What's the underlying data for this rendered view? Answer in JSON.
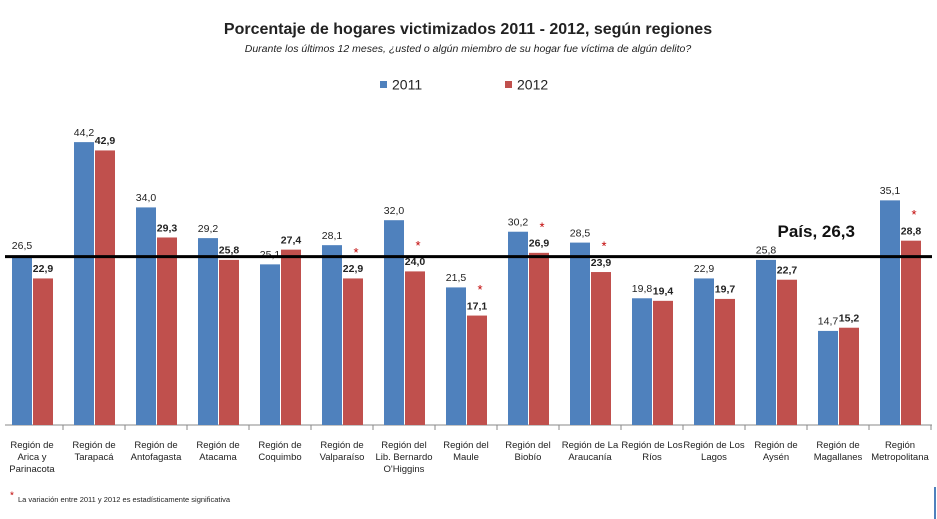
{
  "chart_data": {
    "type": "bar",
    "title": "Porcentaje de hogares victimizados 2011 - 2012, según regiones",
    "subtitle": "Durante los últimos 12 meses, ¿usted o algún miembro de su hogar fue víctima de algún delito?",
    "categories": [
      "Región de Arica y Parinacota",
      "Región de Tarapacá",
      "Región de Antofagasta",
      "Región de Atacama",
      "Región de Coquimbo",
      "Región de Valparaíso",
      "Región del Lib. Bernardo O'Higgins",
      "Región del Maule",
      "Región del Biobío",
      "Región de La Araucanía",
      "Región de Los Ríos",
      "Región de Los Lagos",
      "Región de Aysén",
      "Región de Magallanes",
      "Región Metropolitana"
    ],
    "series": [
      {
        "name": "2011",
        "color": "#4f81bd",
        "values": [
          26.5,
          44.2,
          34.0,
          29.2,
          25.1,
          28.1,
          32.0,
          21.5,
          30.2,
          28.5,
          19.8,
          22.9,
          25.8,
          14.7,
          35.1
        ],
        "value_labels": [
          "26,5",
          "44,2",
          "34,0",
          "29,2",
          "25,1",
          "28,1",
          "32,0",
          "21,5",
          "30,2",
          "28,5",
          "19,8",
          "22,9",
          "25,8",
          "14,7",
          "35,1"
        ]
      },
      {
        "name": "2012",
        "color": "#c0504d",
        "values": [
          22.9,
          42.9,
          29.3,
          25.8,
          27.4,
          22.9,
          24.0,
          17.1,
          26.9,
          23.9,
          19.4,
          19.7,
          22.7,
          15.2,
          28.8
        ],
        "value_labels": [
          "22,9",
          "42,9",
          "29,3",
          "25,8",
          "27,4",
          "22,9",
          "24,0",
          "17,1",
          "26,9",
          "23,9",
          "19,4",
          "19,7",
          "22,7",
          "15,2",
          "28,8"
        ],
        "significant": [
          false,
          false,
          false,
          false,
          false,
          true,
          true,
          true,
          true,
          true,
          false,
          false,
          false,
          false,
          true
        ]
      }
    ],
    "significance_marker": "*",
    "reference_line": {
      "value": 26.3,
      "label": "País, 26,3"
    },
    "ylim": [
      0,
      50
    ],
    "footnote": "La variación entre 2011 y 2012 es estadísticamente significativa"
  }
}
